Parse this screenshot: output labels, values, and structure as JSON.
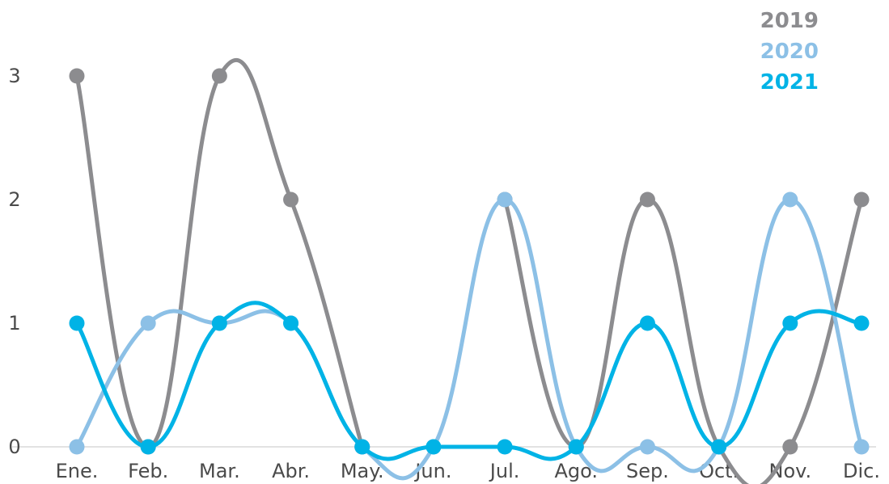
{
  "chart_data": {
    "type": "line",
    "categories": [
      "Ene.",
      "Feb.",
      "Mar.",
      "Abr.",
      "May.",
      "Jun.",
      "Jul.",
      "Ago.",
      "Sep.",
      "Oct.",
      "Nov.",
      "Dic."
    ],
    "yticks": [
      0,
      1,
      2,
      3
    ],
    "ylim": [
      0,
      3
    ],
    "grid": false,
    "legend_position": "top-right",
    "series": [
      {
        "name": "2019",
        "color": "#8c8c8f",
        "values": [
          3,
          0,
          3,
          2,
          0,
          null,
          2,
          0,
          2,
          0,
          0,
          2
        ]
      },
      {
        "name": "2020",
        "color": "#8cc0e6",
        "values": [
          0,
          1,
          1,
          1,
          0,
          0,
          2,
          0,
          0,
          0,
          2,
          0
        ]
      },
      {
        "name": "2021",
        "color": "#00b3e6",
        "values": [
          1,
          0,
          1,
          1,
          0,
          0,
          0,
          0,
          1,
          0,
          1,
          1
        ]
      }
    ]
  }
}
